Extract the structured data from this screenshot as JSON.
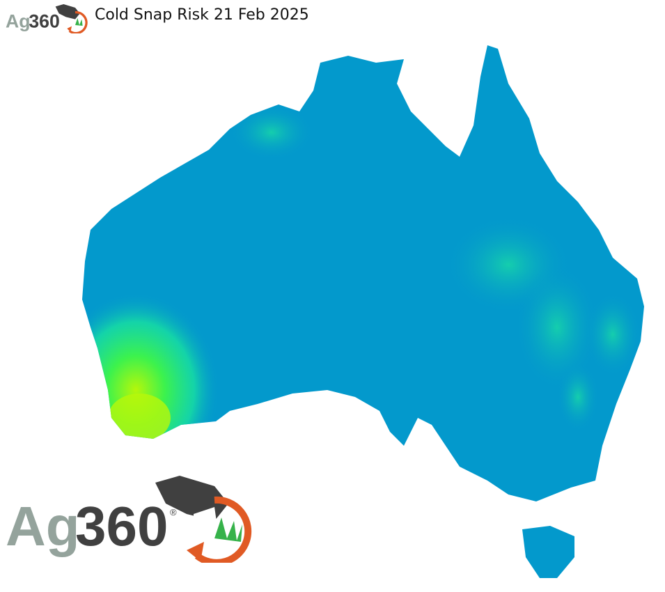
{
  "header": {
    "title": "Cold Snap Risk 21 Feb 2025"
  },
  "logo": {
    "brand_gray": "Ag",
    "brand_dark": "360",
    "registered": "®"
  },
  "map": {
    "region": "Australia",
    "colors": {
      "low_risk": "#0399cc",
      "moderate_risk": "#10d9a6",
      "high_risk": "#2cf56a",
      "highest_risk": "#a8f70c"
    },
    "highlight_areas": [
      "south-west Western Australia",
      "eastern ranges of Queensland and New South Wales"
    ]
  }
}
